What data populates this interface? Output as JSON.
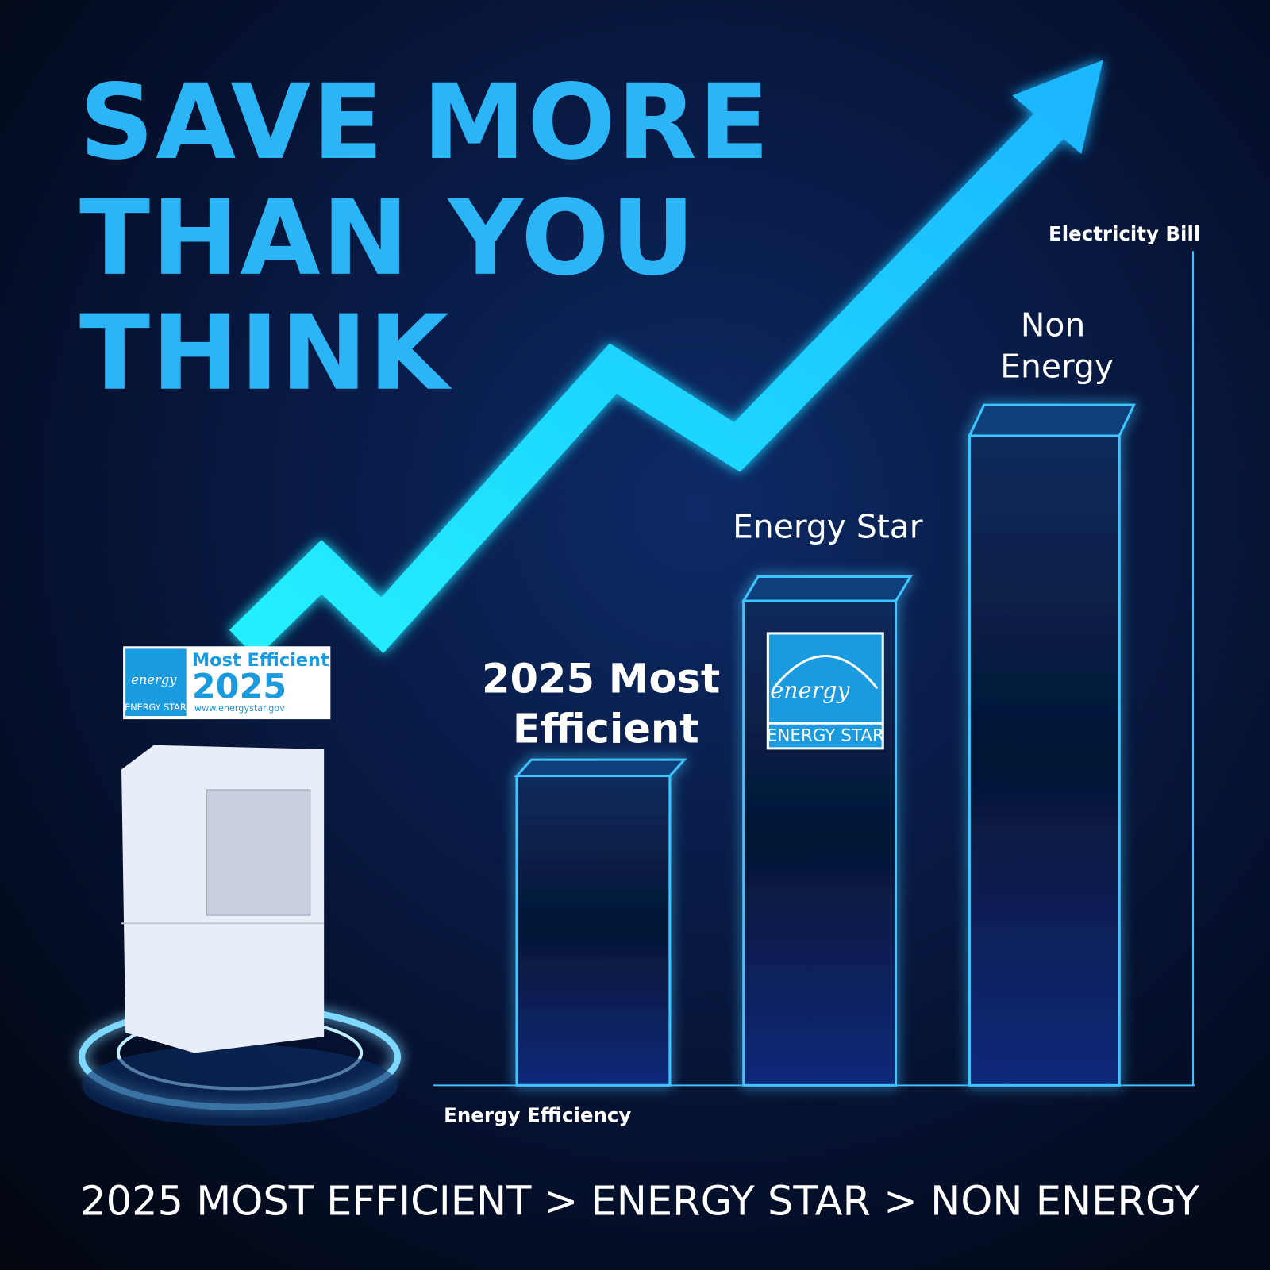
{
  "headline": {
    "lines": [
      "SAVE MORE",
      "THAN YOU",
      "THINK"
    ]
  },
  "axis_labels": {
    "y": "Electricity Bill",
    "x": "Energy Efficiency"
  },
  "bars": [
    {
      "label_lines": [
        "2025 Most",
        "Efficient"
      ]
    },
    {
      "label_lines": [
        "Energy Star"
      ],
      "logo_script": "energy",
      "logo_text": "ENERGY STAR"
    },
    {
      "label_lines": [
        "Non",
        "Energy"
      ]
    }
  ],
  "badge": {
    "title": "Most Efficient",
    "year": "2025",
    "logo_script": "energy",
    "logo_text": "ENERGY STAR",
    "url": "www.energystar.gov"
  },
  "footer": "2025 MOST EFFICIENT > ENERGY STAR > NON ENERGY"
}
